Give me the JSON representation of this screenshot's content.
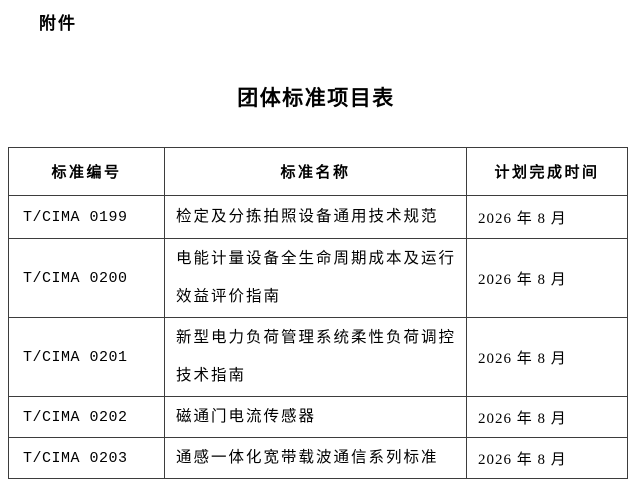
{
  "page": {
    "attachment_label": "附件",
    "title": "团体标准项目表"
  },
  "table": {
    "headers": [
      "标准编号",
      "标准名称",
      "计划完成时间"
    ],
    "rows": [
      {
        "code": "T/CIMA 0199",
        "name": "检定及分拣拍照设备通用技术规范",
        "date": "2026 年 8 月"
      },
      {
        "code": "T/CIMA 0200",
        "name": "电能计量设备全生命周期成本及运行效益评价指南",
        "date": "2026 年 8 月"
      },
      {
        "code": "T/CIMA 0201",
        "name": "新型电力负荷管理系统柔性负荷调控技术指南",
        "date": "2026 年 8 月"
      },
      {
        "code": "T/CIMA 0202",
        "name": "磁通门电流传感器",
        "date": "2026 年 8 月"
      },
      {
        "code": "T/CIMA 0203",
        "name": "通感一体化宽带载波通信系列标准",
        "date": "2026 年 8 月"
      }
    ],
    "border_color": "#3d3d3d",
    "text_color": "#000000",
    "background_color": "#ffffff"
  }
}
